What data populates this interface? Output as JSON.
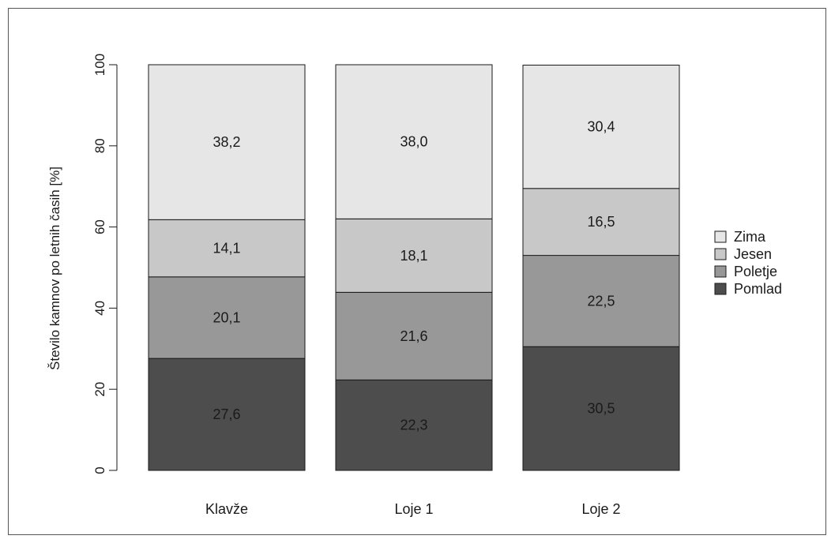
{
  "chart_data": {
    "type": "bar",
    "stacked": true,
    "title": "",
    "xlabel": "",
    "ylabel": "Število kamnov po letnih časih [%]",
    "ylim": [
      0,
      100
    ],
    "yticks": [
      "0",
      "20",
      "40",
      "60",
      "80",
      "100"
    ],
    "categories": [
      "Klavže",
      "Loje 1",
      "Loje 2"
    ],
    "series": [
      {
        "name": "Pomlad",
        "color": "#4d4d4d",
        "values": [
          27.6,
          22.3,
          30.5
        ],
        "labels": [
          "27,6",
          "22,3",
          "30,5"
        ]
      },
      {
        "name": "Poletje",
        "color": "#989898",
        "values": [
          20.1,
          21.6,
          22.5
        ],
        "labels": [
          "20,1",
          "21,6",
          "22,5"
        ]
      },
      {
        "name": "Jesen",
        "color": "#c8c8c8",
        "values": [
          14.1,
          18.1,
          16.5
        ],
        "labels": [
          "14,1",
          "18,1",
          "16,5"
        ]
      },
      {
        "name": "Zima",
        "color": "#e6e6e6",
        "values": [
          38.2,
          38.0,
          30.4
        ],
        "labels": [
          "38,2",
          "38,0",
          "30,4"
        ]
      }
    ],
    "legend": {
      "position": "right",
      "order": [
        "Zima",
        "Jesen",
        "Poletje",
        "Pomlad"
      ]
    },
    "grid": false
  }
}
